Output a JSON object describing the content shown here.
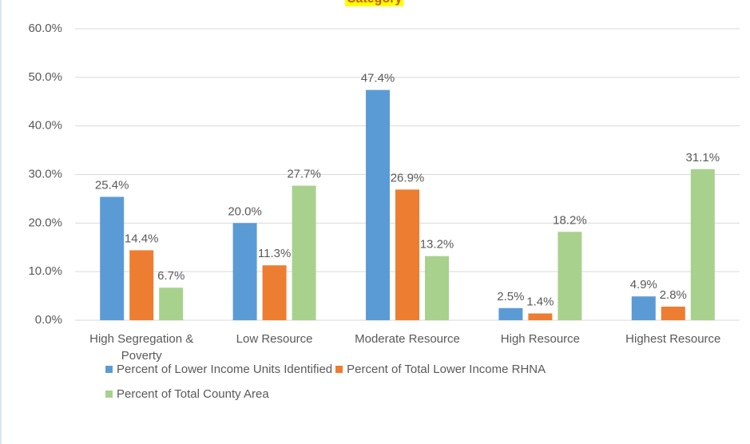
{
  "chart_data": {
    "type": "bar",
    "title": "Category",
    "categories": [
      "High Segregation & Poverty",
      "Low Resource",
      "Moderate Resource",
      "High Resource",
      "Highest Resource"
    ],
    "series": [
      {
        "name": "Percent of Lower Income Units Identified",
        "color": "#5b9bd5",
        "values": [
          25.4,
          20.0,
          47.4,
          2.5,
          4.9
        ],
        "value_labels": [
          "25.4%",
          "20.0%",
          "47.4%",
          "2.5%",
          "4.9%"
        ]
      },
      {
        "name": "Percent of Total Lower Income RHNA",
        "color": "#ed7d31",
        "values": [
          14.4,
          11.3,
          26.9,
          1.4,
          2.8
        ],
        "value_labels": [
          "14.4%",
          "11.3%",
          "26.9%",
          "1.4%",
          "2.8%"
        ]
      },
      {
        "name": "Percent of Total County Area",
        "color": "#a9d18e",
        "values": [
          6.7,
          27.7,
          13.2,
          18.2,
          31.1
        ],
        "value_labels": [
          "6.7%",
          "27.7%",
          "13.2%",
          "18.2%",
          "31.1%"
        ]
      }
    ],
    "ylim": [
      0,
      60
    ],
    "yticks": [
      {
        "value": 0,
        "label": "0.0%"
      },
      {
        "value": 10,
        "label": "10.0%"
      },
      {
        "value": 20,
        "label": "20.0%"
      },
      {
        "value": 30,
        "label": "30.0%"
      },
      {
        "value": 40,
        "label": "40.0%"
      },
      {
        "value": 50,
        "label": "50.0%"
      },
      {
        "value": 60,
        "label": "60.0%"
      }
    ],
    "grid": true
  }
}
